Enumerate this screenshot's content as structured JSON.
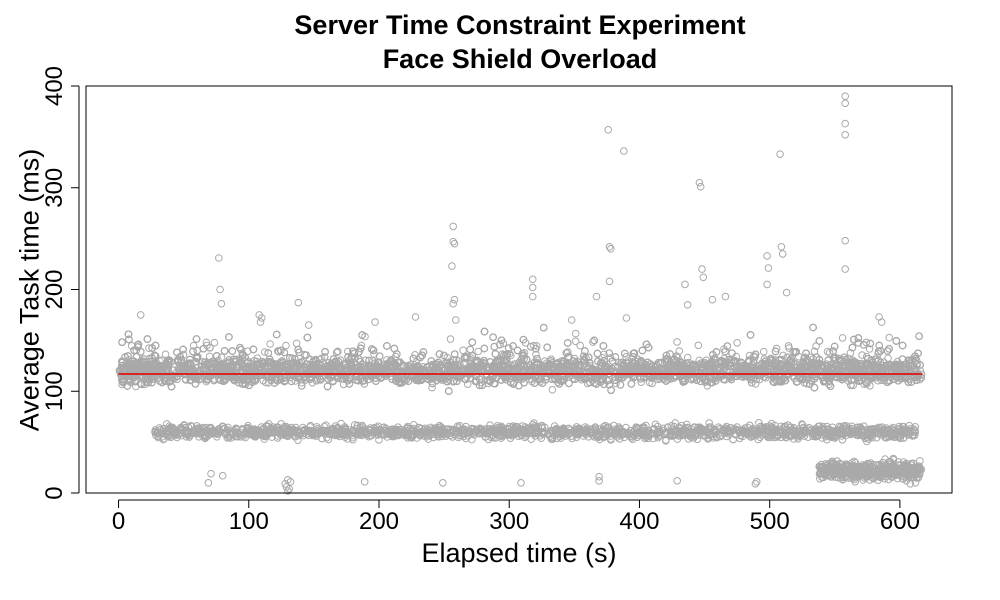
{
  "chart_data": {
    "type": "scatter",
    "title": "Server Time Constraint Experiment",
    "subtitle": "Face Shield Overload",
    "xlabel": "Elapsed time (s)",
    "ylabel": "Average Task time (ms)",
    "xlim": [
      -25,
      640
    ],
    "ylim": [
      0,
      400
    ],
    "xticks": [
      0,
      100,
      200,
      300,
      400,
      500,
      600
    ],
    "yticks": [
      0,
      100,
      200,
      300,
      400
    ],
    "grid": false,
    "legend": "none",
    "point_color": "#a9a9a9",
    "line_color": "#d62728",
    "series": [
      {
        "type": "scatter",
        "main_band": {
          "x_range": [
            0,
            617
          ],
          "y_center": 120,
          "spread": 9,
          "density_per_s": 14
        },
        "low_band": {
          "x_range": [
            28,
            612
          ],
          "y_center": 60,
          "spread": 4.5,
          "density_per_s": 3
        },
        "tail_band": {
          "x_range": [
            538,
            617
          ],
          "y_center": 22,
          "spread": 6,
          "density_per_s": 6
        },
        "bottom_points": [
          [
            69,
            10
          ],
          [
            71,
            19
          ],
          [
            80,
            17
          ],
          [
            128,
            9
          ],
          [
            129,
            6
          ],
          [
            130,
            13
          ],
          [
            131,
            4
          ],
          [
            132,
            11
          ],
          [
            130,
            2
          ],
          [
            189,
            11
          ],
          [
            249,
            10
          ],
          [
            309,
            10
          ],
          [
            369,
            12
          ],
          [
            369,
            16
          ],
          [
            429,
            12
          ],
          [
            489,
            9
          ],
          [
            490,
            11
          ],
          [
            605,
            12
          ],
          [
            608,
            9
          ],
          [
            612,
            10
          ]
        ],
        "outliers": [
          [
            17,
            175
          ],
          [
            77,
            231
          ],
          [
            78,
            200
          ],
          [
            79,
            186
          ],
          [
            108,
            175
          ],
          [
            109,
            168
          ],
          [
            110,
            172
          ],
          [
            138,
            187
          ],
          [
            146,
            165
          ],
          [
            197,
            168
          ],
          [
            228,
            173
          ],
          [
            257,
            262
          ],
          [
            257,
            247
          ],
          [
            258,
            245
          ],
          [
            256,
            223
          ],
          [
            257,
            186
          ],
          [
            258,
            190
          ],
          [
            259,
            170
          ],
          [
            318,
            210
          ],
          [
            318,
            202
          ],
          [
            318,
            193
          ],
          [
            348,
            170
          ],
          [
            367,
            193
          ],
          [
            376,
            357
          ],
          [
            377,
            242
          ],
          [
            378,
            240
          ],
          [
            377,
            208
          ],
          [
            388,
            336
          ],
          [
            390,
            172
          ],
          [
            435,
            205
          ],
          [
            437,
            185
          ],
          [
            446,
            305
          ],
          [
            447,
            301
          ],
          [
            448,
            220
          ],
          [
            449,
            212
          ],
          [
            456,
            190
          ],
          [
            466,
            193
          ],
          [
            498,
            233
          ],
          [
            499,
            221
          ],
          [
            498,
            205
          ],
          [
            508,
            333
          ],
          [
            509,
            242
          ],
          [
            510,
            235
          ],
          [
            513,
            197
          ],
          [
            558,
            390
          ],
          [
            558,
            383
          ],
          [
            558,
            363
          ],
          [
            558,
            352
          ],
          [
            558,
            248
          ],
          [
            558,
            220
          ],
          [
            584,
            173
          ],
          [
            586,
            168
          ]
        ]
      },
      {
        "type": "line",
        "x": [
          0,
          617
        ],
        "y": [
          117,
          117
        ]
      }
    ]
  }
}
